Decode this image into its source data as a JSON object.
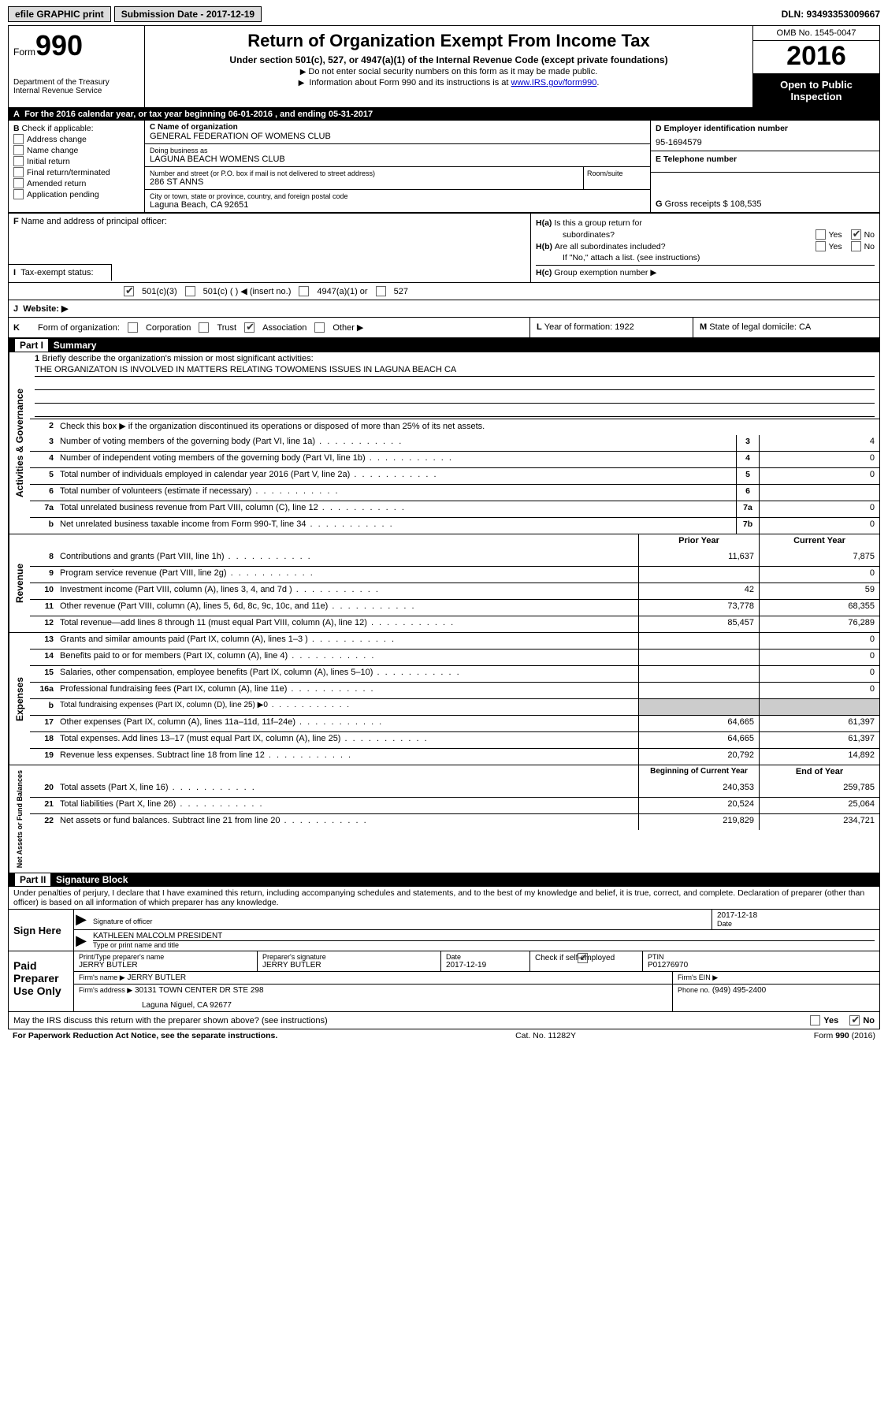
{
  "topbar": {
    "efile": "efile GRAPHIC print",
    "submission_label": "Submission Date - 2017-12-19",
    "dln": "DLN: 93493353009667"
  },
  "header": {
    "form_label": "Form",
    "form_num": "990",
    "dept1": "Department of the Treasury",
    "dept2": "Internal Revenue Service",
    "title": "Return of Organization Exempt From Income Tax",
    "subtitle": "Under section 501(c), 527, or 4947(a)(1) of the Internal Revenue Code (except private foundations)",
    "note1": "Do not enter social security numbers on this form as it may be made public.",
    "note2_pre": "Information about Form 990 and its instructions is at ",
    "note2_link": "www.IRS.gov/form990",
    "note2_post": ".",
    "omb": "OMB No. 1545-0047",
    "year": "2016",
    "inspection": "Open to Public Inspection"
  },
  "row_a": {
    "text_pre": "For the 2016 calendar year, or tax year beginning ",
    "begin": "06-01-2016",
    "mid": " , and ending ",
    "end": "05-31-2017"
  },
  "b": {
    "label": "Check if applicable:",
    "opts": [
      "Address change",
      "Name change",
      "Initial return",
      "Final return/terminated",
      "Amended return",
      "Application pending"
    ]
  },
  "c": {
    "name_lab": "C Name of organization",
    "name": "GENERAL FEDERATION OF WOMENS CLUB",
    "dba_lab": "Doing business as",
    "dba": "LAGUNA BEACH WOMENS CLUB",
    "addr_lab": "Number and street (or P.O. box if mail is not delivered to street address)",
    "room_lab": "Room/suite",
    "addr": "286 ST ANNS",
    "city_lab": "City or town, state or province, country, and foreign postal code",
    "city": "Laguna Beach, CA  92651"
  },
  "d": {
    "lab": "D Employer identification number",
    "val": "95-1694579"
  },
  "e": {
    "lab": "E Telephone number",
    "val": ""
  },
  "g": {
    "lab": "G",
    "txt": "Gross receipts $",
    "val": "108,535"
  },
  "f": {
    "lab": "F",
    "txt": "Name and address of principal officer:"
  },
  "ha": {
    "lab": "H(a)",
    "txt": "Is this a group return for",
    "txt2": "subordinates?",
    "yes": "Yes",
    "no": "No"
  },
  "hb": {
    "lab": "H(b)",
    "txt": "Are all subordinates included?",
    "yes": "Yes",
    "no": "No",
    "note": "If \"No,\" attach a list. (see instructions)"
  },
  "hc": {
    "lab": "H(c)",
    "txt": "Group exemption number ▶"
  },
  "i": {
    "lab": "Tax-exempt status:",
    "o1": "501(c)(3)",
    "o2": "501(c) (   ) ◀ (insert no.)",
    "o3": "4947(a)(1) or",
    "o4": "527"
  },
  "j": {
    "lab": "J",
    "txt": "Website: ▶"
  },
  "k": {
    "lab": "K",
    "txt": "Form of organization:",
    "opts": [
      "Corporation",
      "Trust",
      "Association",
      "Other ▶"
    ],
    "checked": 2
  },
  "l": {
    "lab": "L",
    "txt": "Year of formation:",
    "val": "1922"
  },
  "m": {
    "lab": "M",
    "txt": "State of legal domicile:",
    "val": "CA"
  },
  "part1": {
    "label": "Part I",
    "title": "Summary"
  },
  "mission": {
    "num": "1",
    "lab": "Briefly describe the organization's mission or most significant activities:",
    "text": "THE ORGANIZATON IS INVOLVED IN MATTERS RELATING TOWOMENS ISSUES IN LAGUNA BEACH CA"
  },
  "line2": {
    "num": "2",
    "txt": "Check this box ▶         if the organization discontinued its operations or disposed of more than 25% of its net assets."
  },
  "gov_lines": [
    {
      "n": "3",
      "t": "Number of voting members of the governing body (Part VI, line 1a)",
      "b": "3",
      "v": "4"
    },
    {
      "n": "4",
      "t": "Number of independent voting members of the governing body (Part VI, line 1b)",
      "b": "4",
      "v": "0"
    },
    {
      "n": "5",
      "t": "Total number of individuals employed in calendar year 2016 (Part V, line 2a)",
      "b": "5",
      "v": "0"
    },
    {
      "n": "6",
      "t": "Total number of volunteers (estimate if necessary)",
      "b": "6",
      "v": ""
    },
    {
      "n": "7a",
      "t": "Total unrelated business revenue from Part VIII, column (C), line 12",
      "b": "7a",
      "v": "0"
    },
    {
      "n": "b",
      "t": "Net unrelated business taxable income from Form 990-T, line 34",
      "b": "7b",
      "v": "0"
    }
  ],
  "col_hdrs": {
    "prior": "Prior Year",
    "current": "Current Year"
  },
  "revenue": [
    {
      "n": "8",
      "t": "Contributions and grants (Part VIII, line 1h)",
      "p": "11,637",
      "c": "7,875"
    },
    {
      "n": "9",
      "t": "Program service revenue (Part VIII, line 2g)",
      "p": "",
      "c": "0"
    },
    {
      "n": "10",
      "t": "Investment income (Part VIII, column (A), lines 3, 4, and 7d )",
      "p": "42",
      "c": "59"
    },
    {
      "n": "11",
      "t": "Other revenue (Part VIII, column (A), lines 5, 6d, 8c, 9c, 10c, and 11e)",
      "p": "73,778",
      "c": "68,355"
    },
    {
      "n": "12",
      "t": "Total revenue—add lines 8 through 11 (must equal Part VIII, column (A), line 12)",
      "p": "85,457",
      "c": "76,289"
    }
  ],
  "expenses": [
    {
      "n": "13",
      "t": "Grants and similar amounts paid (Part IX, column (A), lines 1–3 )",
      "p": "",
      "c": "0"
    },
    {
      "n": "14",
      "t": "Benefits paid to or for members (Part IX, column (A), line 4)",
      "p": "",
      "c": "0"
    },
    {
      "n": "15",
      "t": "Salaries, other compensation, employee benefits (Part IX, column (A), lines 5–10)",
      "p": "",
      "c": "0"
    },
    {
      "n": "16a",
      "t": "Professional fundraising fees (Part IX, column (A), line 11e)",
      "p": "",
      "c": "0"
    },
    {
      "n": "b",
      "t": "Total fundraising expenses (Part IX, column (D), line 25) ▶0",
      "p": "SHADE",
      "c": "SHADE",
      "small": true
    },
    {
      "n": "17",
      "t": "Other expenses (Part IX, column (A), lines 11a–11d, 11f–24e)",
      "p": "64,665",
      "c": "61,397"
    },
    {
      "n": "18",
      "t": "Total expenses. Add lines 13–17 (must equal Part IX, column (A), line 25)",
      "p": "64,665",
      "c": "61,397"
    },
    {
      "n": "19",
      "t": "Revenue less expenses. Subtract line 18 from line 12",
      "p": "20,792",
      "c": "14,892"
    }
  ],
  "net_hdrs": {
    "begin": "Beginning of Current Year",
    "end": "End of Year"
  },
  "netassets": [
    {
      "n": "20",
      "t": "Total assets (Part X, line 16)",
      "p": "240,353",
      "c": "259,785"
    },
    {
      "n": "21",
      "t": "Total liabilities (Part X, line 26)",
      "p": "20,524",
      "c": "25,064"
    },
    {
      "n": "22",
      "t": "Net assets or fund balances. Subtract line 21 from line 20",
      "p": "219,829",
      "c": "234,721"
    }
  ],
  "vtabs": {
    "gov": "Activities & Governance",
    "rev": "Revenue",
    "exp": "Expenses",
    "net": "Net Assets or Fund Balances"
  },
  "part2": {
    "label": "Part II",
    "title": "Signature Block"
  },
  "perjury": "Under penalties of perjury, I declare that I have examined this return, including accompanying schedules and statements, and to the best of my knowledge and belief, it is true, correct, and complete. Declaration of preparer (other than officer) is based on all information of which preparer has any knowledge.",
  "sign": {
    "here": "Sign Here",
    "sig_of_officer": "Signature of officer",
    "date": "Date",
    "date_val": "2017-12-18",
    "name": "KATHLEEN MALCOLM PRESIDENT",
    "name_lab": "Type or print name and title"
  },
  "paid": {
    "label": "Paid Preparer Use Only",
    "prep_name_lab": "Print/Type preparer's name",
    "prep_name": "JERRY BUTLER",
    "prep_sig_lab": "Preparer's signature",
    "prep_sig": "JERRY BUTLER",
    "date_lab": "Date",
    "date": "2017-12-19",
    "check_lab": "Check         if self-employed",
    "ptin_lab": "PTIN",
    "ptin": "P01276970",
    "firm_name_lab": "Firm's name    ▶",
    "firm_name": "JERRY BUTLER",
    "firm_ein_lab": "Firm's EIN ▶",
    "firm_addr_lab": "Firm's address ▶",
    "firm_addr1": "30131 TOWN CENTER DR STE 298",
    "firm_addr2": "Laguna Niguel, CA  92677",
    "phone_lab": "Phone no.",
    "phone": "(949) 495-2400"
  },
  "discuss": {
    "txt": "May the IRS discuss this return with the preparer shown above? (see instructions)",
    "yes": "Yes",
    "no": "No"
  },
  "footer": {
    "left": "For Paperwork Reduction Act Notice, see the separate instructions.",
    "mid": "Cat. No. 11282Y",
    "right": "Form 990 (2016)"
  }
}
